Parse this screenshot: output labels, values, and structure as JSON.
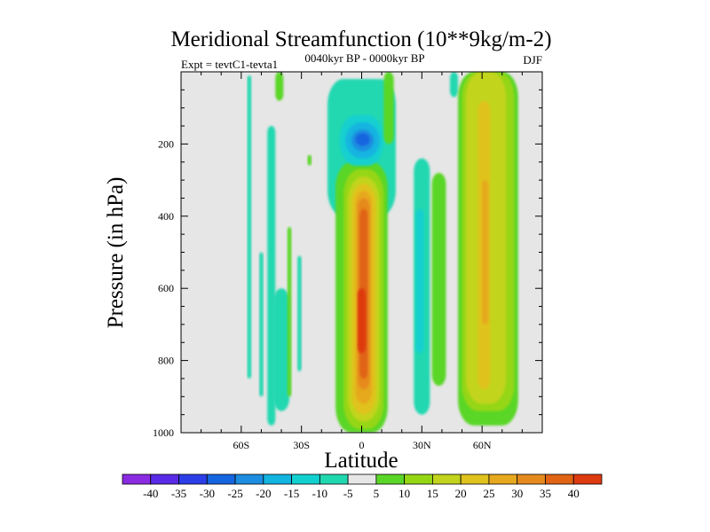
{
  "chart_data": {
    "type": "heatmap",
    "title": "Meridional Streamfunction (10**9kg/m-2)",
    "subtitle_left": "Expt = tevtC1-tevta1",
    "subtitle_center": "0040kyr BP - 0000kyr BP",
    "subtitle_right": "DJF",
    "xlabel": "Latitude",
    "ylabel": "Pressure (in hPa)",
    "xlim": [
      -90,
      90
    ],
    "ylim": [
      1000,
      0
    ],
    "x_ticks": [
      {
        "value": -60,
        "label": "60S"
      },
      {
        "value": -30,
        "label": "30S"
      },
      {
        "value": 0,
        "label": "0"
      },
      {
        "value": 30,
        "label": "30N"
      },
      {
        "value": 60,
        "label": "60N"
      }
    ],
    "y_ticks": [
      {
        "value": 200,
        "label": "200"
      },
      {
        "value": 400,
        "label": "400"
      },
      {
        "value": 600,
        "label": "600"
      },
      {
        "value": 800,
        "label": "800"
      },
      {
        "value": 1000,
        "label": "1000"
      }
    ],
    "background_color": "#e6e6e6",
    "colorbar": {
      "labels": [
        "-40",
        "-35",
        "-30",
        "-25",
        "-20",
        "-15",
        "-10",
        "-5",
        "5",
        "10",
        "15",
        "20",
        "25",
        "30",
        "35",
        "40"
      ],
      "colors": [
        "#8a2be2",
        "#5a2be6",
        "#2c3ee8",
        "#1565e0",
        "#1c8de0",
        "#12b4e0",
        "#12d0d0",
        "#20d8b0",
        "#e6e6e6",
        "#5ad628",
        "#95d614",
        "#c2d41e",
        "#e0c21e",
        "#e6a81e",
        "#e68a1e",
        "#e06414",
        "#de3a10"
      ]
    },
    "regions": [
      {
        "lat": [
          -57,
          -55
        ],
        "p": [
          10,
          850
        ],
        "level": "-5"
      },
      {
        "lat": [
          -51,
          -49
        ],
        "p": [
          500,
          900
        ],
        "level": "-5"
      },
      {
        "lat": [
          -47,
          -43
        ],
        "p": [
          150,
          980
        ],
        "level": "-5"
      },
      {
        "lat": [
          -44,
          -36
        ],
        "p": [
          600,
          940
        ],
        "level": "-5"
      },
      {
        "lat": [
          -43,
          -39
        ],
        "p": [
          0,
          80
        ],
        "level": "5"
      },
      {
        "lat": [
          -37,
          -35
        ],
        "p": [
          430,
          900
        ],
        "level": "5"
      },
      {
        "lat": [
          -32,
          -30
        ],
        "p": [
          510,
          830
        ],
        "level": "-5"
      },
      {
        "lat": [
          -27,
          -25
        ],
        "p": [
          230,
          260
        ],
        "level": "5"
      },
      {
        "lat": [
          -17,
          17
        ],
        "p": [
          20,
          400
        ],
        "level": "-5"
      },
      {
        "lat": [
          -13,
          13
        ],
        "p": [
          250,
          1000
        ],
        "level": "5"
      },
      {
        "lat": [
          -9,
          11
        ],
        "p": [
          270,
          990
        ],
        "level": "10"
      },
      {
        "lat": [
          -7,
          9
        ],
        "p": [
          290,
          970
        ],
        "level": "15"
      },
      {
        "lat": [
          -5,
          7
        ],
        "p": [
          310,
          950
        ],
        "level": "20"
      },
      {
        "lat": [
          -3,
          5
        ],
        "p": [
          330,
          920
        ],
        "level": "25"
      },
      {
        "lat": [
          -2,
          4
        ],
        "p": [
          350,
          880
        ],
        "level": "30"
      },
      {
        "lat": [
          -1,
          3
        ],
        "p": [
          380,
          850
        ],
        "level": "35"
      },
      {
        "lat": [
          -2,
          2
        ],
        "p": [
          600,
          780
        ],
        "level": "40"
      },
      {
        "lat": [
          -11,
          11
        ],
        "p": [
          120,
          260
        ],
        "level": "-10"
      },
      {
        "lat": [
          -8,
          9
        ],
        "p": [
          140,
          240
        ],
        "level": "-15"
      },
      {
        "lat": [
          -5,
          6
        ],
        "p": [
          160,
          220
        ],
        "level": "-20"
      },
      {
        "lat": [
          -3,
          4
        ],
        "p": [
          170,
          205
        ],
        "level": "-25"
      },
      {
        "lat": [
          11,
          16
        ],
        "p": [
          0,
          200
        ],
        "level": "5"
      },
      {
        "lat": [
          26,
          34
        ],
        "p": [
          240,
          950
        ],
        "level": "-5"
      },
      {
        "lat": [
          27,
          31
        ],
        "p": [
          380,
          780
        ],
        "level": "-10"
      },
      {
        "lat": [
          35,
          42
        ],
        "p": [
          280,
          870
        ],
        "level": "5"
      },
      {
        "lat": [
          44,
          48
        ],
        "p": [
          0,
          70
        ],
        "level": "-5"
      },
      {
        "lat": [
          48,
          78
        ],
        "p": [
          0,
          980
        ],
        "level": "5"
      },
      {
        "lat": [
          50,
          76
        ],
        "p": [
          0,
          940
        ],
        "level": "10"
      },
      {
        "lat": [
          52,
          72
        ],
        "p": [
          0,
          920
        ],
        "level": "15"
      },
      {
        "lat": [
          58,
          64
        ],
        "p": [
          80,
          880
        ],
        "level": "20"
      },
      {
        "lat": [
          60,
          63
        ],
        "p": [
          300,
          700
        ],
        "level": "25"
      }
    ]
  }
}
